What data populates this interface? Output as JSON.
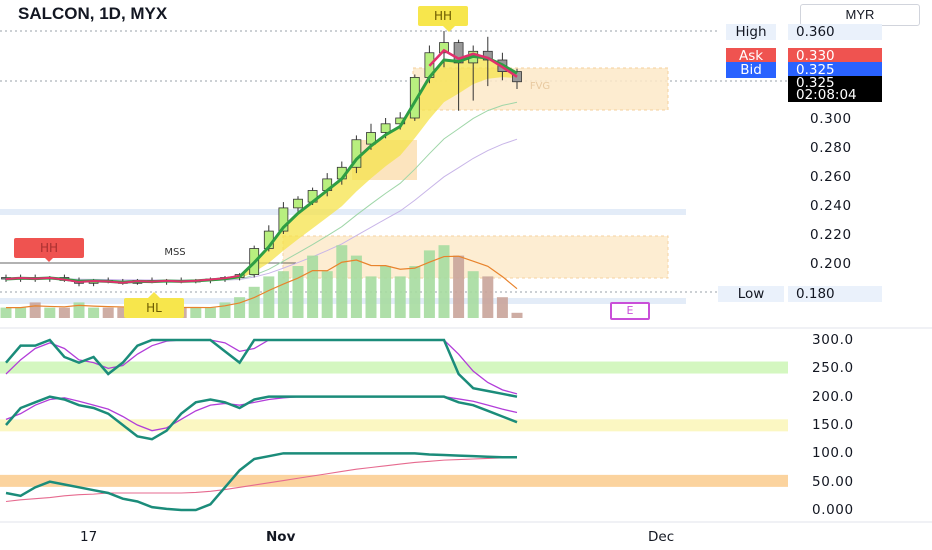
{
  "header": {
    "symbol": "SALCON, 1D, MYX",
    "currency": "MYR"
  },
  "price_panel": {
    "high_label": "High",
    "high_value": "0.360",
    "ask_label": "Ask",
    "ask_value": "0.330",
    "bid_label": "Bid",
    "bid_value": "0.325",
    "last_value": "0.325",
    "countdown": "02:08:04",
    "low_label": "Low",
    "low_value": "0.180"
  },
  "annotations": {
    "hh_top": "HH",
    "hh_left": "HH",
    "hl": "HL",
    "mss": "MSS",
    "earnings": "E",
    "fvg": "FVG"
  },
  "colors": {
    "bull": "#b8ef7f",
    "bear": "#999999",
    "ask": "#ef5350",
    "bid": "#2962ff",
    "ribbon": "#f5e34b",
    "ema": "#2e9e44",
    "ma_pink": "#e0306c",
    "osc_teal": "#1b8c7a",
    "osc_purple": "#b23dd9",
    "fvg_fill": "#fde9c8",
    "volume_up": "#a6dca0",
    "volume_down": "#c9a49a",
    "band_green": "#d4f7c0",
    "band_yellow": "#fbf7c2",
    "band_orange": "#fbd39e"
  },
  "chart_data": [
    {
      "type": "candlestick",
      "title": "SALCON, 1D, MYX",
      "ylim": [
        0.17,
        0.37
      ],
      "yticks": [
        "0.360",
        "0.300",
        "0.280",
        "0.260",
        "0.240",
        "0.220",
        "0.200"
      ],
      "xticks": [
        "17",
        "Nov",
        "Dec"
      ],
      "candles": [
        {
          "o": 0.19,
          "h": 0.192,
          "l": 0.187,
          "c": 0.189
        },
        {
          "o": 0.189,
          "h": 0.192,
          "l": 0.187,
          "c": 0.19
        },
        {
          "o": 0.19,
          "h": 0.192,
          "l": 0.187,
          "c": 0.189
        },
        {
          "o": 0.189,
          "h": 0.191,
          "l": 0.187,
          "c": 0.19
        },
        {
          "o": 0.19,
          "h": 0.192,
          "l": 0.187,
          "c": 0.188
        },
        {
          "o": 0.188,
          "h": 0.19,
          "l": 0.184,
          "c": 0.186
        },
        {
          "o": 0.186,
          "h": 0.189,
          "l": 0.184,
          "c": 0.188
        },
        {
          "o": 0.188,
          "h": 0.19,
          "l": 0.186,
          "c": 0.187
        },
        {
          "o": 0.187,
          "h": 0.189,
          "l": 0.185,
          "c": 0.186
        },
        {
          "o": 0.186,
          "h": 0.189,
          "l": 0.185,
          "c": 0.188
        },
        {
          "o": 0.188,
          "h": 0.19,
          "l": 0.186,
          "c": 0.187
        },
        {
          "o": 0.187,
          "h": 0.189,
          "l": 0.185,
          "c": 0.188
        },
        {
          "o": 0.188,
          "h": 0.19,
          "l": 0.186,
          "c": 0.187
        },
        {
          "o": 0.187,
          "h": 0.189,
          "l": 0.186,
          "c": 0.188
        },
        {
          "o": 0.188,
          "h": 0.19,
          "l": 0.186,
          "c": 0.189
        },
        {
          "o": 0.189,
          "h": 0.191,
          "l": 0.187,
          "c": 0.19
        },
        {
          "o": 0.19,
          "h": 0.193,
          "l": 0.188,
          "c": 0.192
        },
        {
          "o": 0.192,
          "h": 0.212,
          "l": 0.19,
          "c": 0.21
        },
        {
          "o": 0.21,
          "h": 0.226,
          "l": 0.208,
          "c": 0.222
        },
        {
          "o": 0.222,
          "h": 0.242,
          "l": 0.22,
          "c": 0.238
        },
        {
          "o": 0.238,
          "h": 0.246,
          "l": 0.234,
          "c": 0.244
        },
        {
          "o": 0.242,
          "h": 0.252,
          "l": 0.24,
          "c": 0.25
        },
        {
          "o": 0.25,
          "h": 0.262,
          "l": 0.246,
          "c": 0.258
        },
        {
          "o": 0.258,
          "h": 0.27,
          "l": 0.254,
          "c": 0.266
        },
        {
          "o": 0.266,
          "h": 0.288,
          "l": 0.262,
          "c": 0.285
        },
        {
          "o": 0.282,
          "h": 0.296,
          "l": 0.278,
          "c": 0.29
        },
        {
          "o": 0.29,
          "h": 0.3,
          "l": 0.286,
          "c": 0.296
        },
        {
          "o": 0.296,
          "h": 0.304,
          "l": 0.292,
          "c": 0.3
        },
        {
          "o": 0.3,
          "h": 0.33,
          "l": 0.298,
          "c": 0.328
        },
        {
          "o": 0.328,
          "h": 0.35,
          "l": 0.324,
          "c": 0.345
        },
        {
          "o": 0.345,
          "h": 0.36,
          "l": 0.335,
          "c": 0.352
        },
        {
          "o": 0.352,
          "h": 0.354,
          "l": 0.305,
          "c": 0.338
        },
        {
          "o": 0.338,
          "h": 0.35,
          "l": 0.312,
          "c": 0.346
        },
        {
          "o": 0.346,
          "h": 0.356,
          "l": 0.322,
          "c": 0.34
        },
        {
          "o": 0.34,
          "h": 0.345,
          "l": 0.326,
          "c": 0.332
        },
        {
          "o": 0.332,
          "h": 0.334,
          "l": 0.32,
          "c": 0.325
        }
      ],
      "volume": [
        2,
        2,
        3,
        2,
        2,
        3,
        2,
        2,
        2,
        2,
        2,
        2,
        2,
        2,
        2,
        3,
        4,
        6,
        8,
        9,
        10,
        12,
        9,
        14,
        12,
        8,
        10,
        8,
        10,
        13,
        14,
        12,
        9,
        8,
        4,
        1
      ],
      "volume_up": [
        true,
        true,
        false,
        true,
        false,
        true,
        true,
        false,
        false,
        true,
        false,
        true,
        false,
        true,
        true,
        true,
        true,
        true,
        true,
        true,
        true,
        true,
        true,
        true,
        true,
        true,
        true,
        true,
        true,
        true,
        true,
        false,
        true,
        false,
        false,
        false
      ]
    },
    {
      "type": "line",
      "yticks": [
        "300.0",
        "250.0",
        "200.0",
        "150.0",
        "100.0",
        "50.00",
        "0.000"
      ],
      "ylim": [
        0,
        300
      ]
    }
  ]
}
